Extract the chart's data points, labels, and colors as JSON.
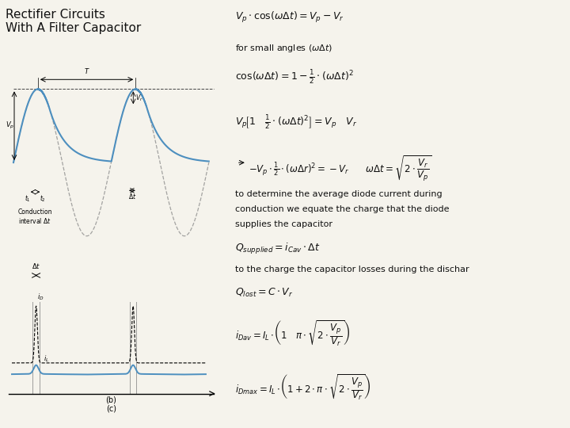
{
  "title": "Rectifier Circuits\nWith A Filter Capacitor",
  "bg_color": "#f5f3ec",
  "text_color": "#111111",
  "title_fontsize": 11,
  "wave_color": "#4d8fbf",
  "sine_color": "#888888",
  "dashed_color": "#444444",
  "eq1": "$V_p \\cdot \\cos(\\omega\\Delta t) = V_p - V_r$",
  "eq_text1": "for small angles $(\\omega\\Delta t)$",
  "eq2": "$\\cos(\\omega\\Delta t) = 1 - \\frac{1}{2}\\cdot(\\omega\\Delta t)^2$",
  "eq3": "$V_p\\!\\left[1\\quad \\frac{1}{2}\\cdot(\\omega\\Delta t)^2\\right] = V_p \\quad V_r$",
  "eq4": "$-V_p\\cdot\\frac{1}{2}\\cdot(\\omega\\Delta r)^2 = -V_r \\qquad \\omega\\Delta t = \\sqrt{2\\cdot\\dfrac{V_r}{V_p}}$",
  "eq_text2a": "to determine the average diode current during",
  "eq_text2b": "conduction we equate the charge that the diode",
  "eq_text2c": "supplies the capacitor",
  "eq5": "$Q_{supplied} = i_{Cav}\\cdot\\Delta t$",
  "eq_text3": "to the charge the capacitor losses during the dischar",
  "eq6": "$Q_{lost} = C\\cdot V_r$",
  "eq7": "$i_{Dav} = I_L\\cdot\\!\\left(1\\quad \\pi\\cdot\\sqrt{2\\cdot\\dfrac{V_p}{V_r}}\\right)$",
  "eq8": "$i_{Dmax} = I_L\\cdot\\!\\left(1 + 2\\cdot\\pi\\cdot\\sqrt{2\\cdot\\dfrac{V_p}{V_r}}\\right)$"
}
